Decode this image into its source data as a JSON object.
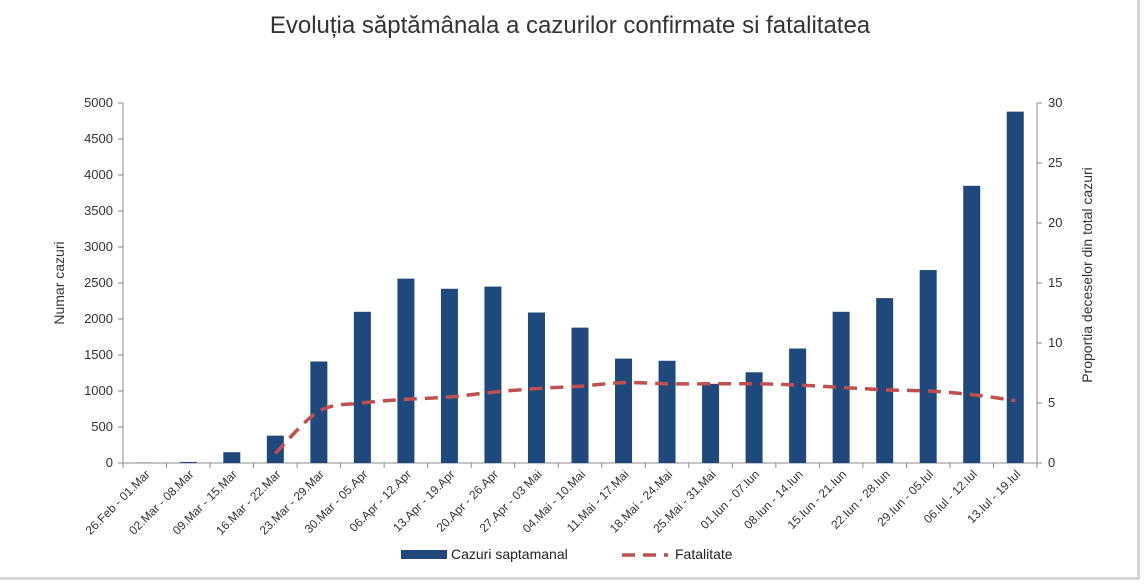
{
  "chart_data": {
    "type": "bar",
    "title": "Evoluția săptămânala a cazurilor confirmate si fatalitatea",
    "ylabel": "Numar cazuri",
    "y2label": "Proportia deceselor din total cazuri",
    "ylim": [
      0,
      5000
    ],
    "y2lim": [
      0,
      30
    ],
    "yticks": [
      "0",
      "500",
      "1000",
      "1500",
      "2000",
      "2500",
      "3000",
      "3500",
      "4000",
      "4500",
      "5000"
    ],
    "y2ticks": [
      "0",
      "5",
      "10",
      "15",
      "20",
      "25",
      "30"
    ],
    "categories": [
      "26.Feb - 01.Mar",
      "02.Mar - 08.Mar",
      "09.Mar - 15.Mar",
      "16.Mar - 22.Mar",
      "23.Mar - 29.Mar",
      "30.Mar - 05.Apr",
      "06.Apr - 12.Apr",
      "13.Apr - 19.Apr",
      "20.Apr - 26.Apr",
      "27.Apr - 03 Mai",
      "04.Mai - 10.Mai",
      "11.Mai - 17.Mai",
      "18.Mai - 24.Mai",
      "25.Mai - 31.Mai",
      "01.Iun - 07.Iun",
      "08.Iun - 14.Iun",
      "15.Iun - 21.Iun",
      "22.Iun - 28.Iun",
      "29.Iun - 05.Iul",
      "06.Iul - 12.Iul",
      "13.Iul - 19.Iul"
    ],
    "series": [
      {
        "name": "Cazuri saptamanal",
        "type": "bar",
        "axis": "left",
        "color": "#1f497d",
        "values": [
          3,
          15,
          150,
          380,
          1410,
          2100,
          2560,
          2420,
          2450,
          2090,
          1880,
          1450,
          1420,
          1100,
          1260,
          1590,
          2100,
          2290,
          2680,
          3850,
          4880
        ]
      },
      {
        "name": "Fatalitate",
        "type": "line",
        "axis": "right",
        "color": "#c0504d",
        "dashed": true,
        "start_index": 3,
        "values": [
          null,
          null,
          null,
          0.8,
          4.3,
          5.0,
          5.3,
          5.5,
          5.9,
          6.2,
          6.4,
          6.7,
          6.6,
          6.6,
          6.6,
          6.5,
          6.3,
          6.1,
          6.0,
          5.7,
          5.2
        ]
      }
    ],
    "grid": false,
    "legend": "bottom"
  }
}
